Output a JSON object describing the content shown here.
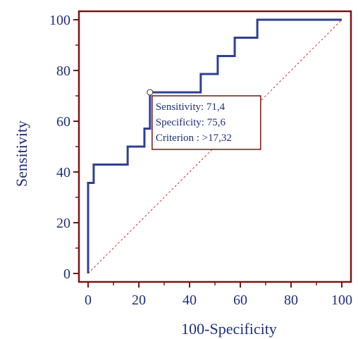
{
  "chart_data": {
    "type": "line",
    "title": "",
    "xlabel": "100-Specificity",
    "ylabel": "Sensitivity",
    "xlim": [
      0,
      100
    ],
    "ylim": [
      0,
      100
    ],
    "xticks": [
      "0",
      "20",
      "40",
      "60",
      "80",
      "100"
    ],
    "yticks": [
      "0",
      "20",
      "40",
      "60",
      "80",
      "100"
    ],
    "grid": false,
    "colors": {
      "curve": "#2f3f95",
      "frame": "#7a1414",
      "diagonal": "#c0392b",
      "text": "#1f2f7a"
    },
    "series": [
      {
        "points": [
          [
            0,
            0
          ],
          [
            0,
            35.7
          ],
          [
            2.2,
            35.7
          ],
          [
            2.2,
            42.9
          ],
          [
            15.6,
            42.9
          ],
          [
            15.6,
            50.0
          ],
          [
            22.2,
            50.0
          ],
          [
            22.2,
            57.1
          ],
          [
            24.4,
            57.1
          ],
          [
            24.4,
            71.4
          ],
          [
            44.4,
            71.4
          ],
          [
            44.4,
            78.6
          ],
          [
            51.1,
            78.6
          ],
          [
            51.1,
            85.7
          ],
          [
            57.8,
            85.7
          ],
          [
            57.8,
            92.9
          ],
          [
            66.7,
            92.9
          ],
          [
            66.7,
            100.0
          ],
          [
            100,
            100
          ]
        ]
      }
    ],
    "reference_line": [
      [
        0,
        0
      ],
      [
        100,
        100
      ]
    ],
    "marker": {
      "x": 24.4,
      "y": 71.4
    },
    "annotation": {
      "lines": [
        "Sensitivity: 71,4",
        "Specificity: 75,6",
        "Criterion : >17,32"
      ]
    }
  }
}
